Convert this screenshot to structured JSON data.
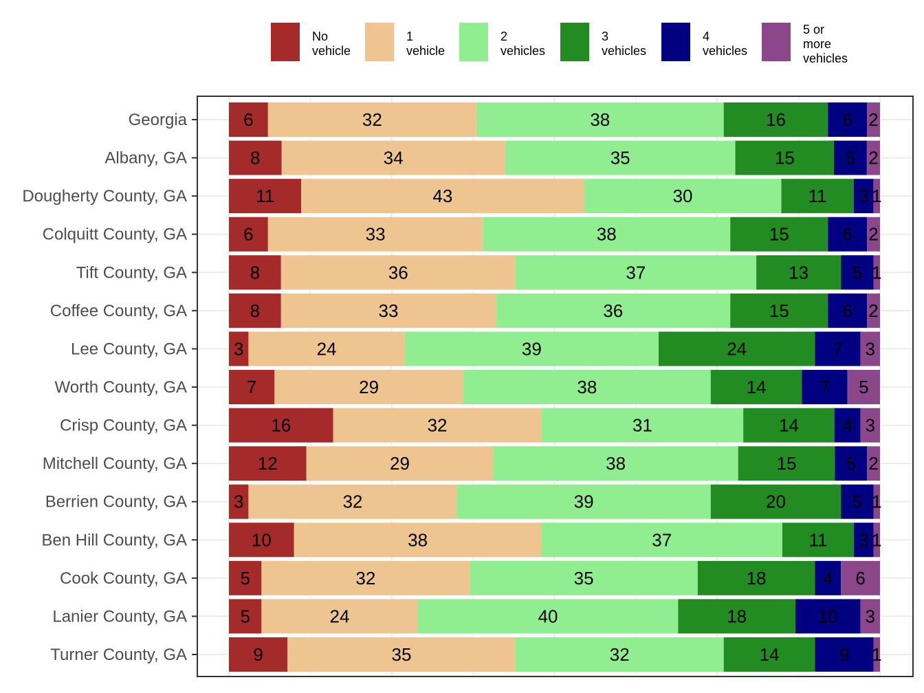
{
  "chart_data": {
    "type": "bar",
    "orientation": "horizontal",
    "stacked": true,
    "title": "",
    "xlabel": "",
    "ylabel": "",
    "xlim": [
      0,
      100
    ],
    "grid": true,
    "legend_position": "top",
    "categories": [
      "Georgia",
      "Albany, GA",
      "Dougherty County, GA",
      "Colquitt County, GA",
      "Tift County, GA",
      "Coffee County, GA",
      "Lee County, GA",
      "Worth County, GA",
      "Crisp County, GA",
      "Mitchell County, GA",
      "Berrien County, GA",
      "Ben Hill County, GA",
      "Cook County, GA",
      "Lanier County, GA",
      "Turner County, GA"
    ],
    "series": [
      {
        "name": "No vehicle",
        "legend_lines": [
          "No",
          "vehicle"
        ],
        "color": "#A52A2A",
        "values": [
          6,
          8,
          11,
          6,
          8,
          8,
          3,
          7,
          16,
          12,
          3,
          10,
          5,
          5,
          9
        ]
      },
      {
        "name": "1 vehicle",
        "legend_lines": [
          "1",
          "vehicle"
        ],
        "color": "#EEC591",
        "values": [
          32,
          34,
          43,
          33,
          36,
          33,
          24,
          29,
          32,
          29,
          32,
          38,
          32,
          24,
          35
        ]
      },
      {
        "name": "2 vehicles",
        "legend_lines": [
          "2",
          "vehicles"
        ],
        "color": "#90EE90",
        "values": [
          38,
          35,
          30,
          38,
          37,
          36,
          39,
          38,
          31,
          38,
          39,
          37,
          35,
          40,
          32
        ]
      },
      {
        "name": "3 vehicles",
        "legend_lines": [
          "3",
          "vehicles"
        ],
        "color": "#228B22",
        "values": [
          16,
          15,
          11,
          15,
          13,
          15,
          24,
          14,
          14,
          15,
          20,
          11,
          18,
          18,
          14
        ]
      },
      {
        "name": "4 vehicles",
        "legend_lines": [
          "4",
          "vehicles"
        ],
        "color": "#000080",
        "values": [
          6,
          5,
          3,
          6,
          5,
          6,
          7,
          7,
          4,
          5,
          5,
          3,
          4,
          10,
          9
        ]
      },
      {
        "name": "5 or more vehicles",
        "legend_lines": [
          "5 or",
          "more",
          "vehicles"
        ],
        "color": "#8B4789",
        "values": [
          2,
          2,
          1,
          2,
          1,
          2,
          3,
          5,
          3,
          2,
          1,
          1,
          6,
          3,
          1
        ]
      }
    ]
  }
}
